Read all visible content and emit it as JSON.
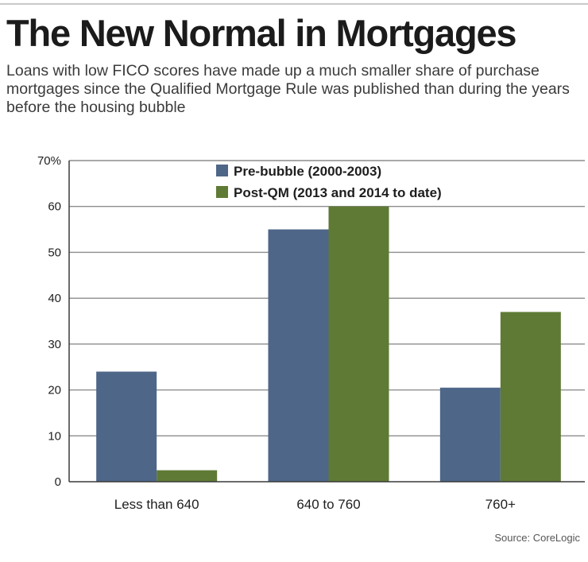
{
  "title": "The New Normal in Mortgages",
  "subtitle": "Loans with low FICO scores have made up a much smaller share of purchase mortgages since the Qualified Mortgage Rule was published than during the years before the housing bubble",
  "source": "Source: CoreLogic",
  "chart_data": {
    "type": "bar",
    "categories": [
      "Less than 640",
      "640 to 760",
      "760+"
    ],
    "series": [
      {
        "name": "Pre-bubble (2000-2003)",
        "values": [
          24,
          55,
          20.5
        ],
        "color": "#4e6688"
      },
      {
        "name": "Post-QM (2013 and 2014 to date)",
        "values": [
          2.5,
          60,
          37
        ],
        "color": "#5f7a35"
      }
    ],
    "ylim": [
      0,
      70
    ],
    "yticks": [
      0,
      10,
      20,
      30,
      40,
      50,
      60,
      70
    ],
    "ytick_labels": [
      "0",
      "10",
      "20",
      "30",
      "40",
      "50",
      "60",
      "70%"
    ],
    "grid": true,
    "legend_position": "top"
  }
}
